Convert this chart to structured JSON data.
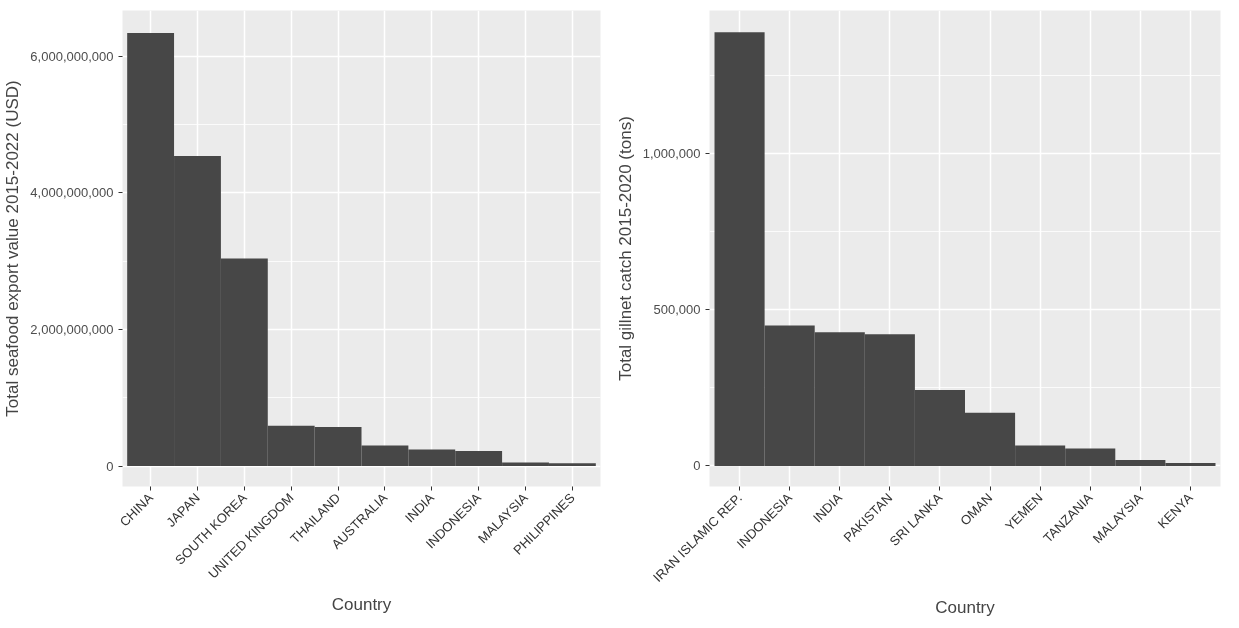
{
  "chart_data": [
    {
      "type": "bar",
      "xlabel": "Country",
      "ylabel": "Total seafood export value 2015-2022 (USD)",
      "categories": [
        "CHINA",
        "JAPAN",
        "SOUTH KOREA",
        "UNITED KINGDOM",
        "THAILAND",
        "AUSTRALIA",
        "INDIA",
        "INDONESIA",
        "MALAYSIA",
        "PHILIPPINES"
      ],
      "series": [
        {
          "color": "#474747",
          "values": [
            6340000000,
            4540000000,
            3040000000,
            590000000,
            570000000,
            300000000,
            240000000,
            220000000,
            50000000,
            40000000
          ]
        }
      ],
      "ylim": [
        -300000000,
        6670000000
      ],
      "yticks": [
        {
          "value": 0,
          "label": "0"
        },
        {
          "value": 2000000000,
          "label": "2,000,000,000"
        },
        {
          "value": 4000000000,
          "label": "4,000,000,000"
        },
        {
          "value": 6000000000,
          "label": "6,000,000,000"
        }
      ],
      "grid": true
    },
    {
      "type": "bar",
      "xlabel": "Country",
      "ylabel": "Total gillnet catch 2015-2020 (tons)",
      "categories": [
        "IRAN ISLAMIC REP.",
        "INDONESIA",
        "INDIA",
        "PAKISTAN",
        "SRI LANKA",
        "OMAN",
        "YEMEN",
        "TANZANIA",
        "MALAYSIA",
        "KENYA"
      ],
      "series": [
        {
          "color": "#474747",
          "values": [
            1389000,
            450000,
            428000,
            422000,
            243000,
            170000,
            65000,
            56000,
            19000,
            9000
          ]
        }
      ],
      "ylim": [
        -66000,
        1459000
      ],
      "yticks": [
        {
          "value": 0,
          "label": "0"
        },
        {
          "value": 500000,
          "label": "500,000"
        },
        {
          "value": 1000000,
          "label": "1,000,000"
        }
      ],
      "grid": true
    }
  ]
}
